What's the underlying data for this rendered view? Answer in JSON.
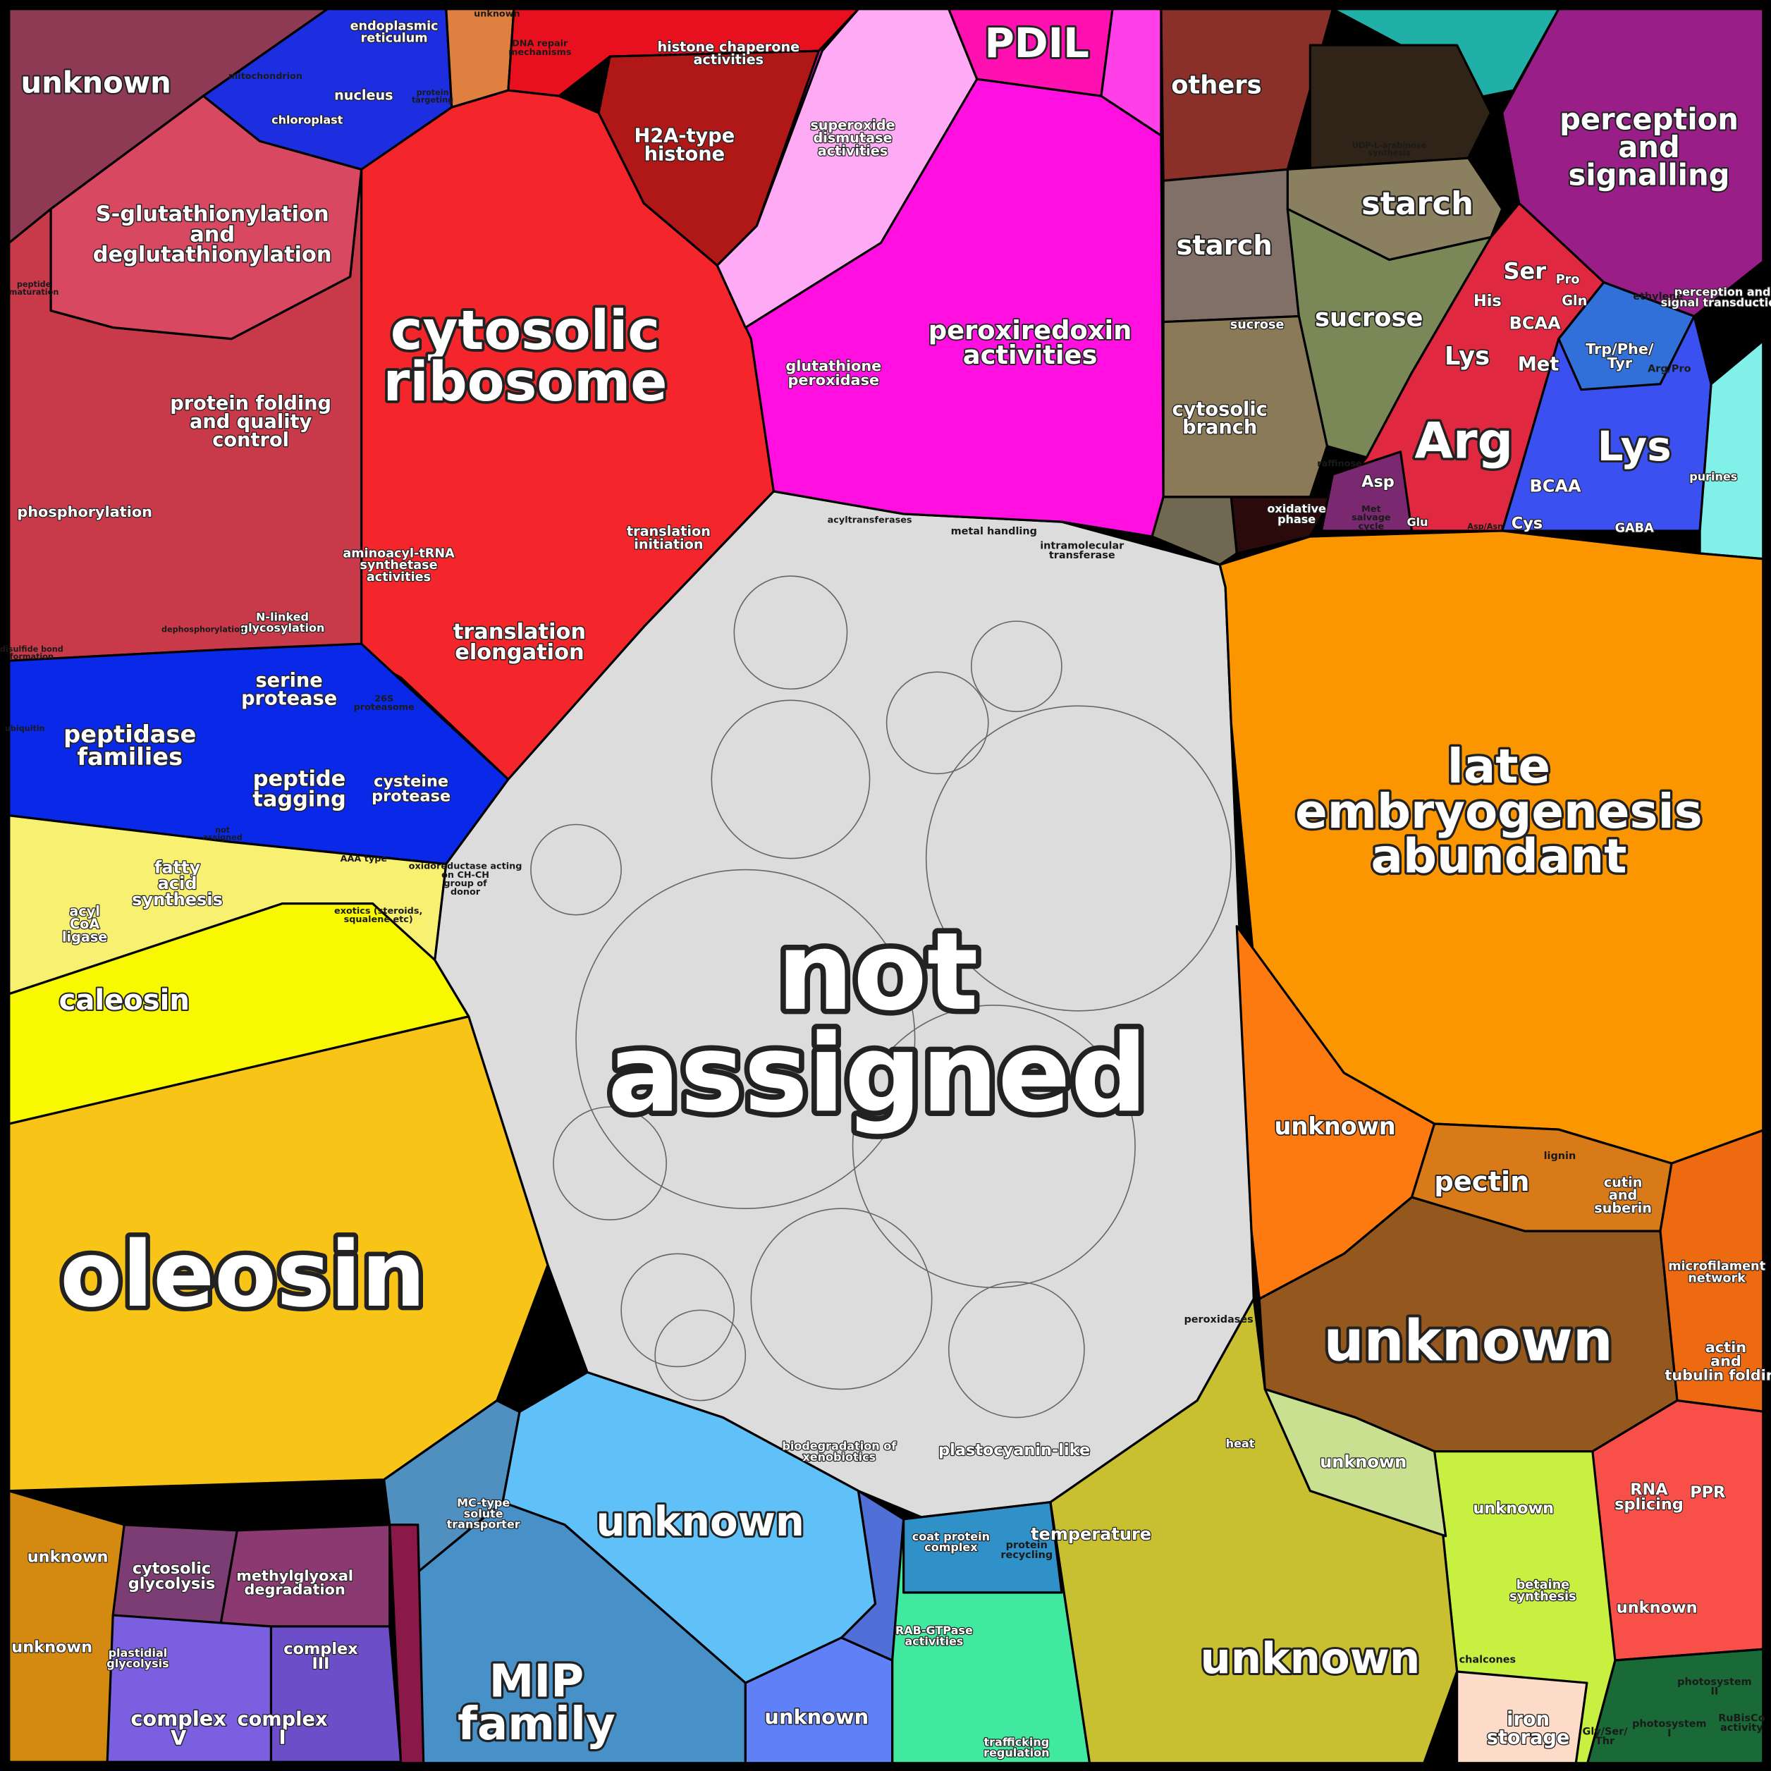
{
  "chart_data": {
    "type": "voronoi-treemap",
    "regions": [
      {
        "color": "#c83a4a"
      },
      {
        "color": "#8e3a55"
      },
      {
        "color": "#1c2ee0"
      },
      {
        "color": "#e08040"
      },
      {
        "color": "#e8101e"
      },
      {
        "color": "#b01818"
      },
      {
        "color": "#f5262b"
      },
      {
        "color": "#d84860"
      },
      {
        "color": "#0a28e8"
      },
      {
        "color": "#f8f070"
      },
      {
        "color": "#f8f800"
      },
      {
        "color": "#f8c418"
      },
      {
        "color": "#d48a10"
      },
      {
        "color": "#7c3c74"
      },
      {
        "color": "#8a3a70"
      },
      {
        "color": "#7a60e0"
      },
      {
        "color": "#6c4ec8"
      },
      {
        "color": "#dcdcdc"
      },
      {
        "color": "#ff10e0"
      },
      {
        "color": "#ffaaf5"
      },
      {
        "color": "#ff10b0"
      },
      {
        "color": "#ff40e8"
      },
      {
        "color": "#8a3028"
      },
      {
        "color": "#20b0a8"
      },
      {
        "color": "#302418"
      },
      {
        "color": "#9a1e88"
      },
      {
        "color": "#8a8060"
      },
      {
        "color": "#807068"
      },
      {
        "color": "#7a8858"
      },
      {
        "color": "#8a7a58"
      },
      {
        "color": "#2a0a0a"
      },
      {
        "color": "#706850"
      },
      {
        "color": "#e02840"
      },
      {
        "color": "#7a2870"
      },
      {
        "color": "#3a50f0"
      },
      {
        "color": "#3070d8"
      },
      {
        "color": "#80f0e8"
      },
      {
        "color": "#fc9600"
      },
      {
        "color": "#fc7a10"
      },
      {
        "color": "#d87a18"
      },
      {
        "color": "#94581e"
      },
      {
        "color": "#ee6a10"
      },
      {
        "color": "#f85048"
      },
      {
        "color": "#1a6a38"
      },
      {
        "color": "#c8f040"
      },
      {
        "color": "#fcdcc8"
      },
      {
        "color": "#c8c030"
      },
      {
        "color": "#c8e090"
      },
      {
        "color": "#40e8a0"
      },
      {
        "color": "#3090c8"
      },
      {
        "color": "#60c0f8"
      },
      {
        "color": "#4890c8"
      },
      {
        "color": "#6080f8"
      },
      {
        "color": "#5090c0"
      },
      {
        "color": "#8a1848"
      },
      {
        "color": "#5070d8"
      }
    ],
    "labels": [
      {
        "text": "unknown"
      },
      {
        "text": "cytosolic ribosome"
      },
      {
        "text": "S-glutathionylation and deglutathionylation"
      },
      {
        "text": "protein folding and quality control"
      },
      {
        "text": "phosphorylation"
      },
      {
        "text": "H2A-type histone"
      },
      {
        "text": "histone chaperone activities"
      },
      {
        "text": "translation elongation"
      },
      {
        "text": "translation initiation"
      },
      {
        "text": "aminoacyl-tRNA synthetase activities"
      },
      {
        "text": "N-linked glycosylation"
      },
      {
        "text": "peptidase families"
      },
      {
        "text": "serine protease"
      },
      {
        "text": "peptide tagging"
      },
      {
        "text": "cysteine protease"
      },
      {
        "text": "26S proteasome"
      },
      {
        "text": "fatty acid synthesis"
      },
      {
        "text": "acyl CoA ligase"
      },
      {
        "text": "caleosin"
      },
      {
        "text": "oleosin"
      },
      {
        "text": "not assigned"
      },
      {
        "text": "peroxiredoxin activities"
      },
      {
        "text": "superoxide dismutase activities"
      },
      {
        "text": "glutathione peroxidase"
      },
      {
        "text": "PDIL"
      },
      {
        "text": "others"
      },
      {
        "text": "perception and signalling"
      },
      {
        "text": "perception and signal transduction"
      },
      {
        "text": "starch"
      },
      {
        "text": "starch"
      },
      {
        "text": "sucrose"
      },
      {
        "text": "sucrose"
      },
      {
        "text": "cytosolic branch"
      },
      {
        "text": "oxidative phase"
      },
      {
        "text": "Ser"
      },
      {
        "text": "His"
      },
      {
        "text": "Gln"
      },
      {
        "text": "Pro"
      },
      {
        "text": "BCAA"
      },
      {
        "text": "Lys"
      },
      {
        "text": "Met"
      },
      {
        "text": "Arg"
      },
      {
        "text": "Asp"
      },
      {
        "text": "Lys"
      },
      {
        "text": "Trp/Phe/ Tyr"
      },
      {
        "text": "BCAA"
      },
      {
        "text": "Cys"
      },
      {
        "text": "GABA"
      },
      {
        "text": "purines"
      },
      {
        "text": "ethylene"
      },
      {
        "text": "late embryogenesis abundant"
      },
      {
        "text": "unknown"
      },
      {
        "text": "pectin"
      },
      {
        "text": "cutin and suberin"
      },
      {
        "text": "lignin"
      },
      {
        "text": "unknown"
      },
      {
        "text": "microfilament network"
      },
      {
        "text": "actin and tubulin folding"
      },
      {
        "text": "RNA splicing"
      },
      {
        "text": "PPR"
      },
      {
        "text": "unknown"
      },
      {
        "text": "photosystem II"
      },
      {
        "text": "iron storage"
      },
      {
        "text": "unknown"
      },
      {
        "text": "betaine synthesis"
      },
      {
        "text": "unknown"
      },
      {
        "text": "temperature"
      },
      {
        "text": "unknown"
      },
      {
        "text": "unknown"
      },
      {
        "text": "MIP family"
      },
      {
        "text": "unknown"
      },
      {
        "text": "MC-type solute transporter"
      },
      {
        "text": "RAB-GTPase activities"
      },
      {
        "text": "coat protein complex"
      },
      {
        "text": "protein recycling"
      },
      {
        "text": "trafficking regulation"
      },
      {
        "text": "plastocyanin-like"
      },
      {
        "text": "peroxidases"
      },
      {
        "text": "biodegradation of xenobiotics"
      },
      {
        "text": "unknown"
      },
      {
        "text": "unknown"
      },
      {
        "text": "cytosolic glycolysis"
      },
      {
        "text": "methylglyoxal degradation"
      },
      {
        "text": "plastidial glycolysis"
      },
      {
        "text": "complex III"
      },
      {
        "text": "complex V"
      },
      {
        "text": "complex I"
      },
      {
        "text": "endoplasmic reticulum"
      },
      {
        "text": "nucleus"
      },
      {
        "text": "chloroplast"
      },
      {
        "text": "mitochondrion"
      },
      {
        "text": "protein targeting"
      },
      {
        "text": "unknown"
      },
      {
        "text": "DNA repair mechanisms"
      },
      {
        "text": "metal handling"
      },
      {
        "text": "intramolecular transferase"
      },
      {
        "text": "acyltransferases"
      },
      {
        "text": "oxidoreductase acting on CH-CH group of donor"
      },
      {
        "text": "heat"
      },
      {
        "text": "chalcones"
      },
      {
        "text": "AAA type"
      },
      {
        "text": "raffinose"
      },
      {
        "text": "Glu"
      },
      {
        "text": "disulfide bond formation"
      },
      {
        "text": "peptide maturation"
      },
      {
        "text": "dephosphorylation"
      },
      {
        "text": "ubiquitin"
      },
      {
        "text": "not assigned"
      },
      {
        "text": "exotics (steroids, squalene etc)"
      },
      {
        "text": "Arg/Pro"
      },
      {
        "text": "Asp/Asn"
      },
      {
        "text": "Met salvage cycle"
      },
      {
        "text": "UDP-L-arabinose synthesis"
      },
      {
        "text": "photosystem I"
      },
      {
        "text": "RuBisCo activity"
      },
      {
        "text": "Gly/Ser/ Thr"
      }
    ]
  }
}
